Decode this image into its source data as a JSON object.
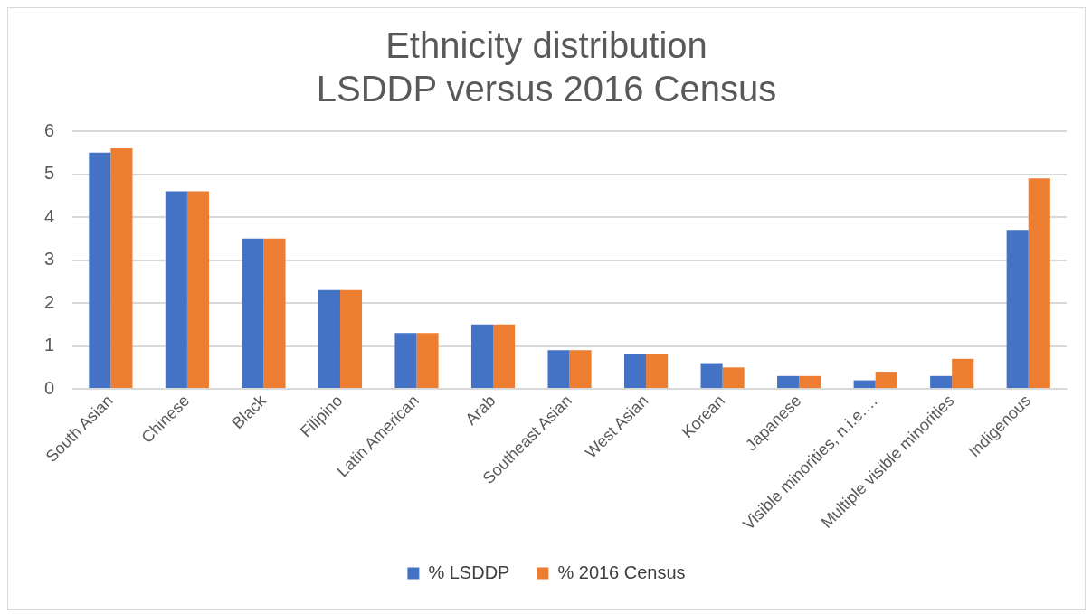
{
  "chart_data": {
    "type": "bar",
    "title": [
      "Ethnicity distribution",
      "LSDDP versus 2016 Census"
    ],
    "categories": [
      "South Asian",
      "Chinese",
      "Black",
      "Filipino",
      "Latin American",
      "Arab",
      "Southeast Asian",
      "West Asian",
      "Korean",
      "Japanese",
      "Visible minorities, n.i.e.…",
      "Multiple visible minorities",
      "Indigenous"
    ],
    "series": [
      {
        "name": "% LSDDP",
        "color": "#4472c4",
        "values": [
          5.5,
          4.6,
          3.5,
          2.3,
          1.3,
          1.5,
          0.9,
          0.8,
          0.6,
          0.3,
          0.2,
          0.3,
          3.7
        ]
      },
      {
        "name": "% 2016 Census",
        "color": "#ed7d31",
        "values": [
          5.6,
          4.6,
          3.5,
          2.3,
          1.3,
          1.5,
          0.9,
          0.8,
          0.5,
          0.3,
          0.4,
          0.7,
          4.9
        ]
      }
    ],
    "ylim": [
      0,
      6
    ],
    "yticks": [
      0,
      1,
      2,
      3,
      4,
      5,
      6
    ],
    "grid": "y",
    "legend": "bottom"
  }
}
